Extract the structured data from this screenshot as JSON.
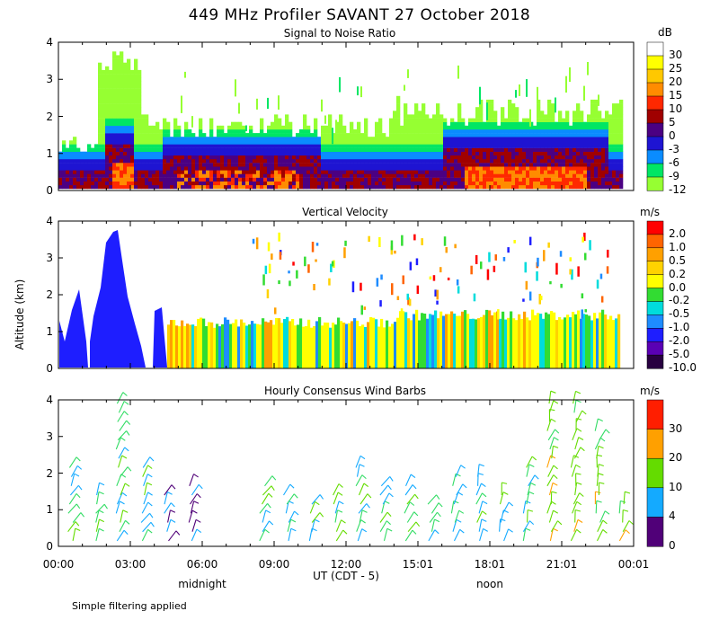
{
  "title": "449 MHz Profiler SAVANT 27 October 2018",
  "footnote": "Simple filtering applied",
  "ylabel": "Altitude (km)",
  "xlabel": "UT  (CDT - 5)",
  "local_labels": [
    "midnight",
    "noon"
  ],
  "chart_data": [
    {
      "type": "heatmap",
      "title": "Signal to Noise Ratio",
      "units": "dB",
      "ylim": [
        0,
        4
      ],
      "yticks": [
        "0",
        "1",
        "2",
        "3",
        "4"
      ],
      "xticks": [
        "00:00",
        "03:00",
        "06:00",
        "09:00",
        "12:00",
        "15:01",
        "18:01",
        "21:01",
        "00:01"
      ],
      "colorbar": [
        {
          "label": "30",
          "color": "#ffffff"
        },
        {
          "label": "25",
          "color": "#ffff00"
        },
        {
          "label": "20",
          "color": "#ffc800"
        },
        {
          "label": "15",
          "color": "#ff8c00"
        },
        {
          "label": "10",
          "color": "#ff2800"
        },
        {
          "label": "5",
          "color": "#a00000"
        },
        {
          "label": "0",
          "color": "#4b0082"
        },
        {
          "label": "-3",
          "color": "#1e14d2"
        },
        {
          "label": "-6",
          "color": "#0a8cff"
        },
        {
          "label": "-9",
          "color": "#00e664"
        },
        {
          "label": "-12",
          "color": "#96ff32"
        }
      ]
    },
    {
      "type": "heatmap",
      "title": "Vertical Velocity",
      "units": "m/s",
      "ylim": [
        0,
        4
      ],
      "yticks": [
        "0",
        "1",
        "2",
        "3",
        "4"
      ],
      "xticks": [
        "00:00",
        "03:00",
        "06:00",
        "09:00",
        "12:00",
        "15:01",
        "18:01",
        "21:01",
        "00:01"
      ],
      "colorbar": [
        {
          "label": "2.0",
          "color": "#ff0000"
        },
        {
          "label": "1.0",
          "color": "#ff6400"
        },
        {
          "label": "0.5",
          "color": "#ffa000"
        },
        {
          "label": "0.2",
          "color": "#ffd200"
        },
        {
          "label": "0.0",
          "color": "#ffff00"
        },
        {
          "label": "-0.2",
          "color": "#32dc32"
        },
        {
          "label": "-0.5",
          "color": "#00dcdc"
        },
        {
          "label": "-1.0",
          "color": "#1e8cff"
        },
        {
          "label": "-2.0",
          "color": "#1e1eff"
        },
        {
          "label": "-5.0",
          "color": "#5a00b4"
        },
        {
          "label": "-10.0",
          "color": "#280040"
        }
      ]
    },
    {
      "type": "scatter",
      "title": "Hourly Consensus Wind Barbs",
      "units": "m/s",
      "ylim": [
        0,
        4
      ],
      "yticks": [
        "0",
        "1",
        "2",
        "3",
        "4"
      ],
      "xticks": [
        "00:00",
        "03:00",
        "06:00",
        "09:00",
        "12:00",
        "15:01",
        "18:01",
        "21:01",
        "00:01"
      ],
      "colorbar": [
        {
          "label": "30",
          "color": "#ff1e00"
        },
        {
          "label": "20",
          "color": "#ffa000"
        },
        {
          "label": "10",
          "color": "#64dc00"
        },
        {
          "label": "4",
          "color": "#14aaff"
        },
        {
          "label": "0",
          "color": "#500078"
        }
      ]
    }
  ]
}
